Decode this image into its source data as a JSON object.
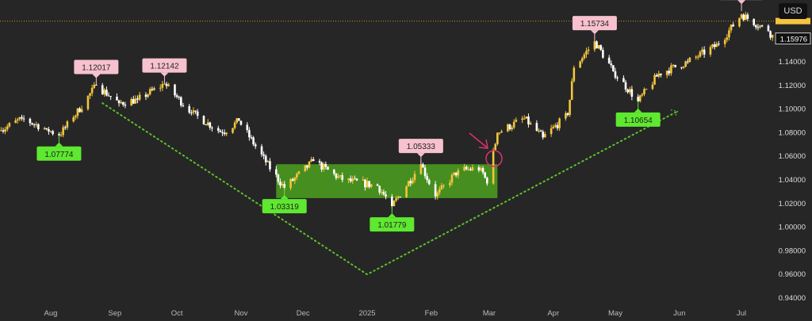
{
  "currency_button": "USD",
  "chart_data": {
    "type": "candlestick",
    "x_tick_labels": [
      "Aug",
      "Sep",
      "Oct",
      "Nov",
      "Dec",
      "2025",
      "Feb",
      "Mar",
      "Apr",
      "May",
      "Jun",
      "Jul"
    ],
    "x_tick_dates": [
      "2024-08-01",
      "2024-09-01",
      "2024-10-01",
      "2024-11-01",
      "2024-12-01",
      "2025-01-01",
      "2025-02-01",
      "2025-03-01",
      "2025-04-01",
      "2025-05-01",
      "2025-06-01",
      "2025-07-01"
    ],
    "y_tick_labels": [
      "1.14000",
      "1.12000",
      "1.10000",
      "1.08000",
      "1.06000",
      "1.04000",
      "1.02000",
      "1.00000",
      "0.98000",
      "0.96000",
      "0.94000"
    ],
    "ylim": [
      0.932,
      1.193
    ],
    "current_price_label": "1.15976",
    "current_price": 1.15976,
    "dashed_level": 1.1745,
    "price_path": [
      [
        "2024-07-08",
        1.082
      ],
      [
        "2024-07-18",
        1.092
      ],
      [
        "2024-07-30",
        1.083
      ],
      [
        "2024-08-05",
        1.0777
      ],
      [
        "2024-08-12",
        1.093
      ],
      [
        "2024-08-23",
        1.1202
      ],
      [
        "2024-09-03",
        1.105
      ],
      [
        "2024-09-12",
        1.108
      ],
      [
        "2024-09-25",
        1.1214
      ],
      [
        "2024-10-08",
        1.097
      ],
      [
        "2024-10-23",
        1.08
      ],
      [
        "2024-10-31",
        1.09
      ],
      [
        "2024-11-13",
        1.055
      ],
      [
        "2024-11-22",
        1.0332
      ],
      [
        "2024-12-06",
        1.056
      ],
      [
        "2024-12-20",
        1.04
      ],
      [
        "2025-01-06",
        1.035
      ],
      [
        "2025-01-13",
        1.0178
      ],
      [
        "2025-01-27",
        1.0533
      ],
      [
        "2025-02-03",
        1.026
      ],
      [
        "2025-02-14",
        1.048
      ],
      [
        "2025-02-25",
        1.05
      ],
      [
        "2025-02-28",
        1.037
      ],
      [
        "2025-03-05",
        1.08
      ],
      [
        "2025-03-18",
        1.092
      ],
      [
        "2025-03-27",
        1.076
      ],
      [
        "2025-04-08",
        1.095
      ],
      [
        "2025-04-11",
        1.135
      ],
      [
        "2025-04-21",
        1.1573
      ],
      [
        "2025-04-30",
        1.132
      ],
      [
        "2025-05-12",
        1.1065
      ],
      [
        "2025-05-22",
        1.13
      ],
      [
        "2025-06-05",
        1.14
      ],
      [
        "2025-06-20",
        1.155
      ],
      [
        "2025-07-01",
        1.18
      ],
      [
        "2025-07-14",
        1.166
      ],
      [
        "2025-07-17",
        1.1597
      ]
    ],
    "annotations": [
      {
        "text": "1.07774",
        "date": "2024-08-05",
        "price": 1.07774,
        "kind": "low"
      },
      {
        "text": "1.12017",
        "date": "2024-08-23",
        "price": 1.12017,
        "kind": "high"
      },
      {
        "text": "1.12142",
        "date": "2024-09-25",
        "price": 1.12142,
        "kind": "high"
      },
      {
        "text": "1.03319",
        "date": "2024-11-22",
        "price": 1.03319,
        "kind": "low"
      },
      {
        "text": "1.01779",
        "date": "2025-01-13",
        "price": 1.01779,
        "kind": "low"
      },
      {
        "text": "1.05333",
        "date": "2025-01-27",
        "price": 1.05333,
        "kind": "high"
      },
      {
        "text": "1.15734",
        "date": "2025-04-21",
        "price": 1.15734,
        "kind": "high"
      },
      {
        "text": "1.10654",
        "date": "2025-05-12",
        "price": 1.10654,
        "kind": "low"
      },
      {
        "text": "",
        "date": "2025-07-01",
        "price": 1.1829,
        "kind": "high"
      }
    ],
    "range_box": {
      "start": "2024-11-18",
      "end": "2025-03-05",
      "top": 1.0533,
      "bottom": 1.0246,
      "color": "#4a9a1f"
    },
    "trend_line": [
      [
        "2024-08-26",
        1.105
      ],
      [
        "2025-01-01",
        0.96
      ],
      [
        "2025-05-31",
        1.098
      ]
    ],
    "colors": {
      "up": "#f2c53d",
      "down": "#ffffff",
      "low_label": "#5ee830",
      "high_label": "#f7c1cf",
      "trend": "#5ec22a",
      "marker": "#d8336a"
    }
  }
}
